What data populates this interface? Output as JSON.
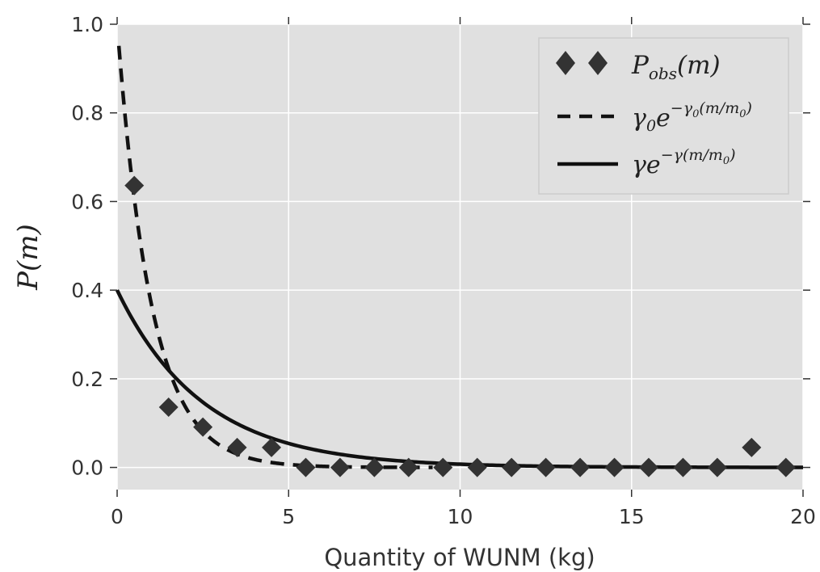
{
  "chart_data": {
    "type": "line",
    "xlabel": "Quantity of WUNM (kg)",
    "ylabel": "P(m)",
    "xlim": [
      0,
      20
    ],
    "ylim": [
      -0.05,
      1.0
    ],
    "xticks": [
      0,
      5,
      10,
      15,
      20
    ],
    "xtick_labels": [
      "0",
      "5",
      "10",
      "15",
      "20"
    ],
    "yticks": [
      0.0,
      0.2,
      0.4,
      0.6,
      0.8,
      1.0
    ],
    "ytick_labels": [
      "0.0",
      "0.2",
      "0.4",
      "0.6",
      "0.8",
      "1.0"
    ],
    "grid": true,
    "background_color": "#e0e0e0",
    "legend_position": "top-right",
    "series": [
      {
        "name": "P_obs(m)",
        "kind": "scatter",
        "marker": "diamond",
        "color": "#333333",
        "x": [
          0.5,
          1.5,
          2.5,
          3.5,
          4.5,
          5.5,
          6.5,
          7.5,
          8.5,
          9.5,
          10.5,
          11.5,
          12.5,
          13.5,
          14.5,
          15.5,
          16.5,
          17.5,
          18.5,
          19.5
        ],
        "y": [
          0.636,
          0.136,
          0.091,
          0.045,
          0.045,
          0.0,
          0.0,
          0.0,
          0.0,
          0.0,
          0.0,
          0.0,
          0.0,
          0.0,
          0.0,
          0.0,
          0.0,
          0.0,
          0.045,
          0.0
        ]
      },
      {
        "name": "γ0 e^{-γ0 (m/m0)}",
        "kind": "line",
        "style": "dashed",
        "color": "#111111",
        "function": "exponential",
        "gamma": 1.0,
        "x_range": [
          0.05,
          9.2
        ]
      },
      {
        "name": "γ e^{-γ (m/m0)}",
        "kind": "line",
        "style": "solid",
        "color": "#111111",
        "function": "exponential",
        "gamma": 0.4,
        "x_range": [
          0.0,
          20.0
        ]
      }
    ]
  }
}
